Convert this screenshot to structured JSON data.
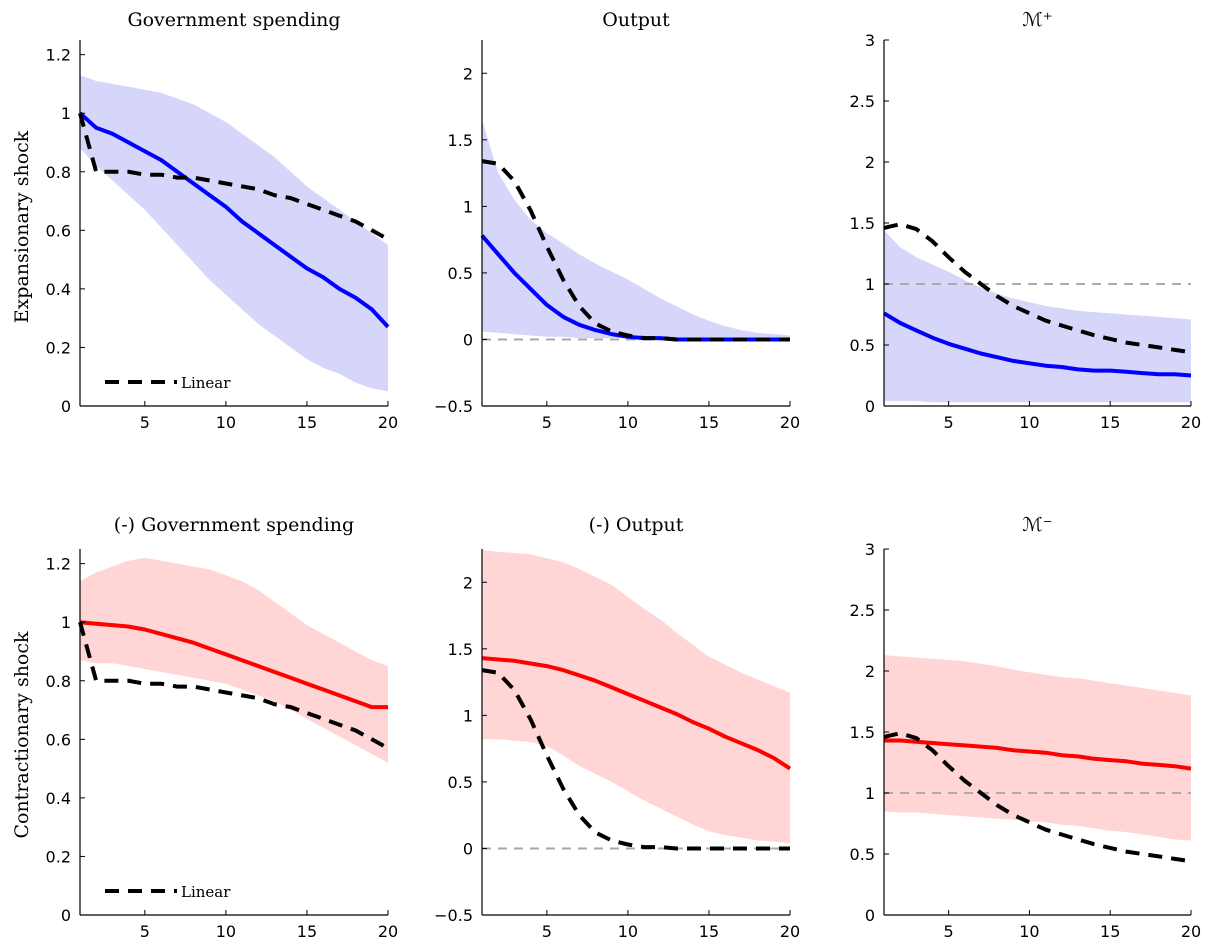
{
  "colors": {
    "expansionary_line": "#0000ff",
    "expansionary_band": "#d6d6fb",
    "contractionary_line": "#ff0000",
    "contractionary_band": "#ffd5d5",
    "linear": "#000000",
    "reference": "#aaaaaa"
  },
  "row_labels": [
    "Expansionary shock",
    "Contractionary shock"
  ],
  "legend_label": "Linear",
  "chart_data": [
    {
      "type": "line",
      "title": "Government spending",
      "row": 0,
      "col": 0,
      "xlim": [
        1,
        20
      ],
      "ylim": [
        0,
        1.25
      ],
      "xticks": [
        5,
        10,
        15,
        20
      ],
      "yticks": [
        0,
        0.2,
        0.4,
        0.6,
        0.8,
        1,
        1.2
      ],
      "x": [
        1,
        2,
        3,
        4,
        5,
        6,
        7,
        8,
        9,
        10,
        11,
        12,
        13,
        14,
        15,
        16,
        17,
        18,
        19,
        20
      ],
      "series": [
        {
          "role": "estimate",
          "values": [
            1.0,
            0.95,
            0.93,
            0.9,
            0.87,
            0.84,
            0.8,
            0.76,
            0.72,
            0.68,
            0.63,
            0.59,
            0.55,
            0.51,
            0.47,
            0.44,
            0.4,
            0.37,
            0.33,
            0.27
          ]
        },
        {
          "name": "Linear",
          "role": "linear",
          "values": [
            1.0,
            0.8,
            0.8,
            0.8,
            0.79,
            0.79,
            0.78,
            0.78,
            0.77,
            0.76,
            0.75,
            0.74,
            0.72,
            0.71,
            0.69,
            0.67,
            0.65,
            0.63,
            0.6,
            0.57
          ]
        }
      ],
      "band": {
        "upper": [
          1.13,
          1.11,
          1.1,
          1.09,
          1.08,
          1.07,
          1.05,
          1.03,
          1.0,
          0.97,
          0.93,
          0.89,
          0.85,
          0.8,
          0.75,
          0.71,
          0.67,
          0.63,
          0.59,
          0.55
        ],
        "lower": [
          0.88,
          0.82,
          0.77,
          0.72,
          0.67,
          0.61,
          0.55,
          0.49,
          0.43,
          0.38,
          0.33,
          0.28,
          0.24,
          0.2,
          0.16,
          0.13,
          0.11,
          0.08,
          0.06,
          0.05
        ]
      },
      "reference_line": null,
      "legend": "bottom-left"
    },
    {
      "type": "line",
      "title": "Output",
      "row": 0,
      "col": 1,
      "xlim": [
        1,
        20
      ],
      "ylim": [
        -0.5,
        2.25
      ],
      "xticks": [
        5,
        10,
        15,
        20
      ],
      "yticks": [
        -0.5,
        0,
        0.5,
        1,
        1.5,
        2
      ],
      "x": [
        1,
        2,
        3,
        4,
        5,
        6,
        7,
        8,
        9,
        10,
        11,
        12,
        13,
        14,
        15,
        16,
        17,
        18,
        19,
        20
      ],
      "series": [
        {
          "role": "estimate",
          "values": [
            0.78,
            0.64,
            0.5,
            0.38,
            0.26,
            0.17,
            0.11,
            0.07,
            0.04,
            0.02,
            0.01,
            0.01,
            0.0,
            0.0,
            0.0,
            0.0,
            0.0,
            0.0,
            0.0,
            0.0
          ]
        },
        {
          "name": "Linear",
          "role": "linear",
          "values": [
            1.34,
            1.32,
            1.19,
            0.97,
            0.7,
            0.45,
            0.25,
            0.12,
            0.06,
            0.03,
            0.01,
            0.01,
            0.0,
            0.0,
            0.0,
            0.0,
            0.0,
            0.0,
            0.0,
            0.0
          ]
        }
      ],
      "band": {
        "upper": [
          1.65,
          1.25,
          1.05,
          0.9,
          0.8,
          0.72,
          0.64,
          0.57,
          0.51,
          0.45,
          0.38,
          0.31,
          0.25,
          0.19,
          0.14,
          0.1,
          0.07,
          0.05,
          0.04,
          0.03
        ],
        "lower": [
          0.06,
          0.05,
          0.04,
          0.03,
          0.02,
          0.02,
          0.01,
          0.01,
          0.01,
          0.01,
          0.0,
          0.0,
          0.0,
          0.0,
          0.0,
          0.0,
          0.0,
          0.0,
          0.0,
          0.0
        ]
      },
      "reference_line": 0,
      "legend": null
    },
    {
      "type": "line",
      "title": "ℳ⁺",
      "row": 0,
      "col": 2,
      "xlim": [
        1,
        20
      ],
      "ylim": [
        0,
        3
      ],
      "xticks": [
        5,
        10,
        15,
        20
      ],
      "yticks": [
        0,
        0.5,
        1,
        1.5,
        2,
        2.5,
        3
      ],
      "x": [
        1,
        2,
        3,
        4,
        5,
        6,
        7,
        8,
        9,
        10,
        11,
        12,
        13,
        14,
        15,
        16,
        17,
        18,
        19,
        20
      ],
      "series": [
        {
          "role": "estimate",
          "values": [
            0.76,
            0.68,
            0.62,
            0.56,
            0.51,
            0.47,
            0.43,
            0.4,
            0.37,
            0.35,
            0.33,
            0.32,
            0.3,
            0.29,
            0.29,
            0.28,
            0.27,
            0.26,
            0.26,
            0.25
          ]
        },
        {
          "name": "Linear",
          "role": "linear",
          "values": [
            1.46,
            1.49,
            1.45,
            1.35,
            1.22,
            1.1,
            1.0,
            0.9,
            0.82,
            0.76,
            0.7,
            0.66,
            0.62,
            0.58,
            0.55,
            0.52,
            0.5,
            0.48,
            0.46,
            0.44
          ]
        }
      ],
      "band": {
        "upper": [
          1.44,
          1.3,
          1.22,
          1.16,
          1.1,
          1.03,
          0.97,
          0.92,
          0.88,
          0.85,
          0.82,
          0.8,
          0.78,
          0.77,
          0.76,
          0.75,
          0.74,
          0.73,
          0.72,
          0.71
        ],
        "lower": [
          0.04,
          0.04,
          0.04,
          0.03,
          0.03,
          0.03,
          0.03,
          0.03,
          0.03,
          0.03,
          0.03,
          0.03,
          0.03,
          0.03,
          0.03,
          0.03,
          0.03,
          0.03,
          0.03,
          0.03
        ]
      },
      "reference_line": 1,
      "legend": null
    },
    {
      "type": "line",
      "title": "(-) Government spending",
      "row": 1,
      "col": 0,
      "xlim": [
        1,
        20
      ],
      "ylim": [
        0,
        1.25
      ],
      "xticks": [
        5,
        10,
        15,
        20
      ],
      "yticks": [
        0,
        0.2,
        0.4,
        0.6,
        0.8,
        1,
        1.2
      ],
      "x": [
        1,
        2,
        3,
        4,
        5,
        6,
        7,
        8,
        9,
        10,
        11,
        12,
        13,
        14,
        15,
        16,
        17,
        18,
        19,
        20
      ],
      "series": [
        {
          "role": "estimate",
          "values": [
            1.0,
            0.995,
            0.99,
            0.985,
            0.975,
            0.96,
            0.945,
            0.93,
            0.91,
            0.89,
            0.87,
            0.85,
            0.83,
            0.81,
            0.79,
            0.77,
            0.75,
            0.73,
            0.71,
            0.71
          ]
        },
        {
          "name": "Linear",
          "role": "linear",
          "values": [
            1.0,
            0.8,
            0.8,
            0.8,
            0.79,
            0.79,
            0.78,
            0.78,
            0.77,
            0.76,
            0.75,
            0.74,
            0.72,
            0.71,
            0.69,
            0.67,
            0.65,
            0.63,
            0.6,
            0.57
          ]
        }
      ],
      "band": {
        "upper": [
          1.14,
          1.17,
          1.19,
          1.21,
          1.22,
          1.21,
          1.2,
          1.19,
          1.18,
          1.16,
          1.14,
          1.11,
          1.07,
          1.03,
          0.99,
          0.96,
          0.93,
          0.9,
          0.87,
          0.85
        ],
        "lower": [
          0.87,
          0.86,
          0.86,
          0.85,
          0.84,
          0.83,
          0.82,
          0.81,
          0.8,
          0.79,
          0.77,
          0.75,
          0.73,
          0.7,
          0.67,
          0.64,
          0.61,
          0.58,
          0.55,
          0.52
        ]
      },
      "reference_line": null,
      "legend": "bottom-left"
    },
    {
      "type": "line",
      "title": "(-) Output",
      "row": 1,
      "col": 1,
      "xlim": [
        1,
        20
      ],
      "ylim": [
        -0.5,
        2.25
      ],
      "xticks": [
        5,
        10,
        15,
        20
      ],
      "yticks": [
        -0.5,
        0,
        0.5,
        1,
        1.5,
        2
      ],
      "x": [
        1,
        2,
        3,
        4,
        5,
        6,
        7,
        8,
        9,
        10,
        11,
        12,
        13,
        14,
        15,
        16,
        17,
        18,
        19,
        20
      ],
      "series": [
        {
          "role": "estimate",
          "values": [
            1.43,
            1.42,
            1.41,
            1.39,
            1.37,
            1.34,
            1.3,
            1.26,
            1.21,
            1.16,
            1.11,
            1.06,
            1.01,
            0.95,
            0.9,
            0.84,
            0.79,
            0.74,
            0.68,
            0.6
          ]
        },
        {
          "name": "Linear",
          "role": "linear",
          "values": [
            1.34,
            1.32,
            1.19,
            0.97,
            0.7,
            0.45,
            0.25,
            0.12,
            0.06,
            0.03,
            0.01,
            0.01,
            0.0,
            0.0,
            0.0,
            0.0,
            0.0,
            0.0,
            0.0,
            0.0
          ]
        }
      ],
      "band": {
        "upper": [
          2.24,
          2.23,
          2.22,
          2.21,
          2.18,
          2.15,
          2.1,
          2.04,
          1.98,
          1.89,
          1.8,
          1.72,
          1.62,
          1.53,
          1.44,
          1.38,
          1.32,
          1.27,
          1.22,
          1.17
        ],
        "lower": [
          0.82,
          0.82,
          0.81,
          0.8,
          0.77,
          0.7,
          0.62,
          0.56,
          0.5,
          0.43,
          0.36,
          0.3,
          0.24,
          0.18,
          0.13,
          0.1,
          0.08,
          0.06,
          0.05,
          0.04
        ]
      },
      "reference_line": 0,
      "legend": null
    },
    {
      "type": "line",
      "title": "ℳ⁻",
      "row": 1,
      "col": 2,
      "xlim": [
        1,
        20
      ],
      "ylim": [
        0,
        3
      ],
      "xticks": [
        5,
        10,
        15,
        20
      ],
      "yticks": [
        0,
        0.5,
        1,
        1.5,
        2,
        2.5,
        3
      ],
      "x": [
        1,
        2,
        3,
        4,
        5,
        6,
        7,
        8,
        9,
        10,
        11,
        12,
        13,
        14,
        15,
        16,
        17,
        18,
        19,
        20
      ],
      "series": [
        {
          "role": "estimate",
          "values": [
            1.43,
            1.43,
            1.42,
            1.41,
            1.4,
            1.39,
            1.38,
            1.37,
            1.35,
            1.34,
            1.33,
            1.31,
            1.3,
            1.28,
            1.27,
            1.26,
            1.24,
            1.23,
            1.22,
            1.2
          ]
        },
        {
          "name": "Linear",
          "role": "linear",
          "values": [
            1.46,
            1.49,
            1.45,
            1.35,
            1.22,
            1.1,
            1.0,
            0.9,
            0.82,
            0.76,
            0.7,
            0.66,
            0.62,
            0.58,
            0.55,
            0.52,
            0.5,
            0.48,
            0.46,
            0.44
          ]
        }
      ],
      "band": {
        "upper": [
          2.13,
          2.12,
          2.11,
          2.1,
          2.09,
          2.08,
          2.06,
          2.04,
          2.01,
          1.99,
          1.97,
          1.95,
          1.94,
          1.92,
          1.9,
          1.88,
          1.86,
          1.84,
          1.82,
          1.8
        ],
        "lower": [
          0.85,
          0.84,
          0.84,
          0.83,
          0.82,
          0.81,
          0.8,
          0.79,
          0.78,
          0.77,
          0.76,
          0.74,
          0.73,
          0.71,
          0.69,
          0.68,
          0.66,
          0.64,
          0.62,
          0.61
        ]
      },
      "reference_line": 1,
      "legend": null
    }
  ]
}
